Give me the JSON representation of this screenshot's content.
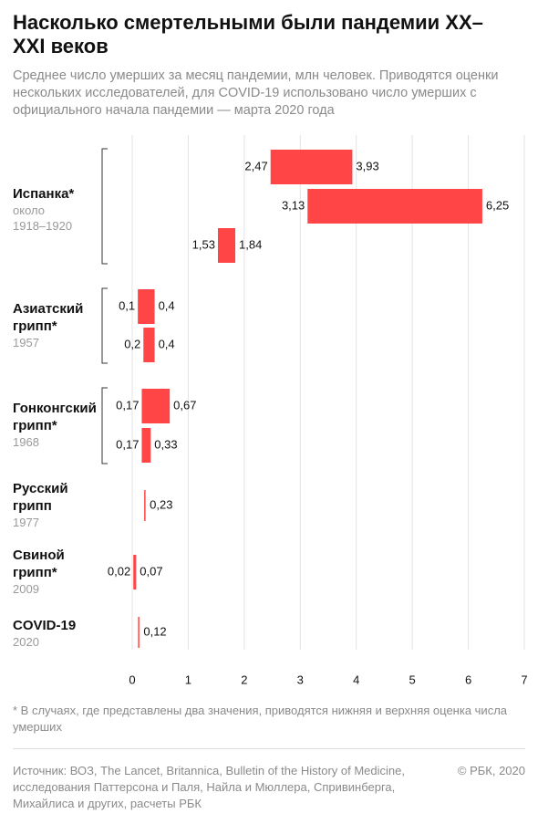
{
  "chart_data": {
    "type": "range-bar",
    "title": "Насколько смертельными были пандемии XX–XXI веков",
    "subtitle": "Среднее число умерших за месяц пандемии, млн человек. Приводятся оценки нескольких исследователей, для COVID-19 использовано число умерших с официального начала пандемии — марта 2020 года",
    "footnote": "* В случаях, где представлены два значения, приводятся нижняя и верхняя оценка числа умерших",
    "source": "Источник: ВОЗ, The Lancet, Britannica, Bulletin of the History of Medicine, исследования Паттерсона и Паля, Найла и Мюллера, Спривинберга, Михайлиса и других, расчеты РБК",
    "copyright": "© РБК, 2020",
    "color": "#ff4545",
    "grid": true,
    "xlim": [
      0,
      7
    ],
    "xticks": [
      0,
      1,
      2,
      3,
      4,
      5,
      6,
      7
    ],
    "groups": [
      {
        "name": "Испанка*",
        "note": "около",
        "years": "1918–1920",
        "ranges": [
          {
            "values": [
              2.47,
              3.93
            ],
            "value_labels": [
              "2,47",
              "3,93"
            ]
          },
          {
            "values": [
              3.13,
              6.25
            ],
            "value_labels": [
              "3,13",
              "6,25"
            ]
          },
          {
            "values": [
              1.53,
              1.84
            ],
            "value_labels": [
              "1,53",
              "1,84"
            ]
          }
        ]
      },
      {
        "name": "Азиатский грипп*",
        "years": "1957",
        "ranges": [
          {
            "values": [
              0.1,
              0.4
            ],
            "value_labels": [
              "0,1",
              "0,4"
            ]
          },
          {
            "values": [
              0.2,
              0.4
            ],
            "value_labels": [
              "0,2",
              "0,4"
            ]
          }
        ]
      },
      {
        "name": "Гонконгский грипп*",
        "years": "1968",
        "ranges": [
          {
            "values": [
              0.17,
              0.67
            ],
            "value_labels": [
              "0,17",
              "0,67"
            ]
          },
          {
            "values": [
              0.17,
              0.33
            ],
            "value_labels": [
              "0,17",
              "0,33"
            ]
          }
        ]
      },
      {
        "name": "Русский грипп",
        "years": "1977",
        "ranges": [
          {
            "values": [
              0.23
            ],
            "value_labels": [
              "0,23"
            ]
          }
        ]
      },
      {
        "name": "Свиной грипп*",
        "years": "2009",
        "ranges": [
          {
            "values": [
              0.02,
              0.07
            ],
            "value_labels": [
              "0,02",
              "0,07"
            ]
          }
        ]
      },
      {
        "name": "COVID-19",
        "years": "2020",
        "ranges": [
          {
            "values": [
              0.12
            ],
            "value_labels": [
              "0,12"
            ]
          }
        ]
      }
    ]
  }
}
